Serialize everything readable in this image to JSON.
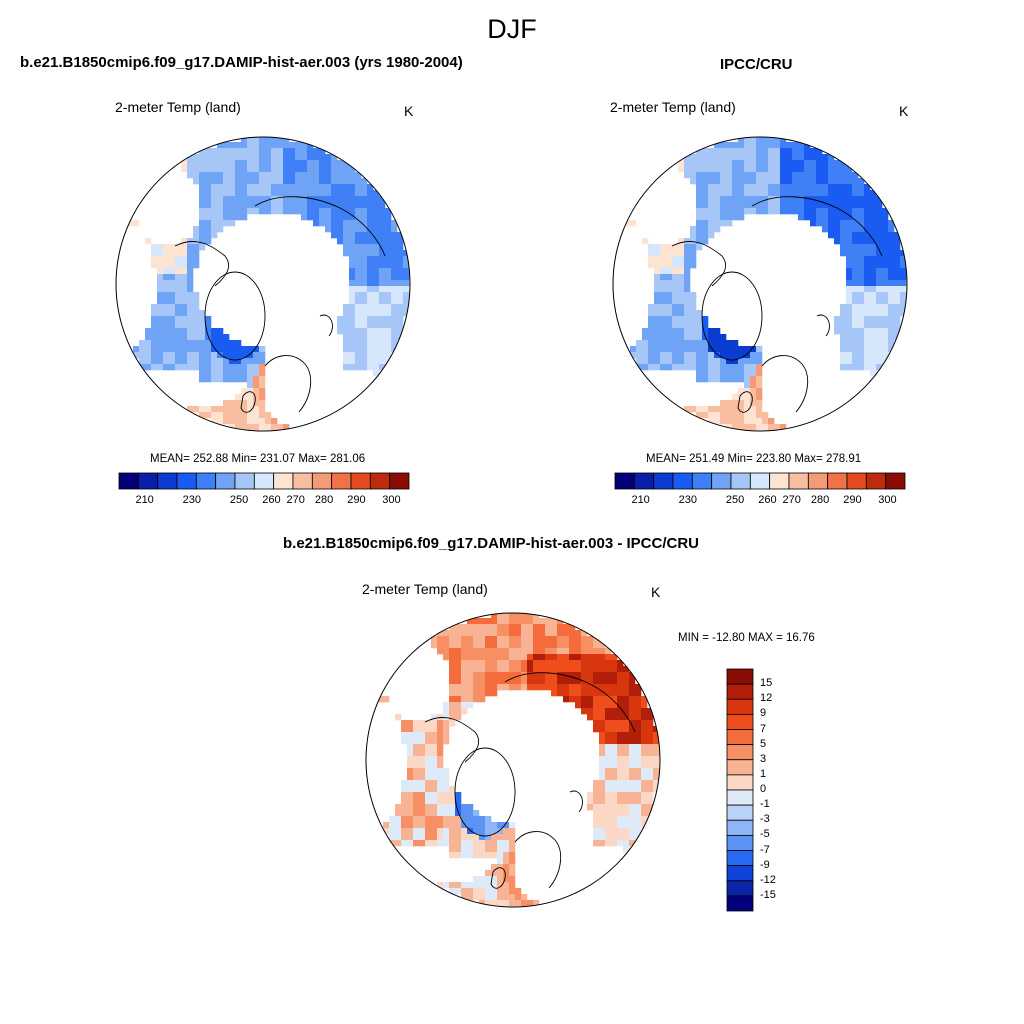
{
  "figure": {
    "season_title": "DJF"
  },
  "panels": [
    {
      "title": "b.e21.B1850cmip6.f09_g17.DAMIP-hist-aer.003 (yrs 1980-2004)",
      "variable": "2-meter Temp (land)",
      "units": "K",
      "stats": "MEAN= 252.88  Min= 231.07  Max= 281.06"
    },
    {
      "title": "IPCC/CRU",
      "variable": "2-meter Temp (land)",
      "units": "K",
      "stats": "MEAN= 251.49  Min= 223.80  Max= 278.91"
    },
    {
      "title": "b.e21.B1850cmip6.f09_g17.DAMIP-hist-aer.003 - IPCC/CRU",
      "variable": "2-meter Temp (land)",
      "units": "K",
      "stats": "MIN = -12.80 MAX =  16.76"
    }
  ],
  "colorbars": {
    "absolute": {
      "orientation": "horizontal",
      "tick_labels": [
        "210",
        "230",
        "250",
        "260",
        "270",
        "280",
        "290",
        "300"
      ],
      "colors": [
        "#04007a",
        "#0a1fa8",
        "#0b3cd0",
        "#1a5cf2",
        "#3f80f6",
        "#6fa3f5",
        "#a6c6f7",
        "#d6e6fb",
        "#fde3d2",
        "#f9bea0",
        "#f59a76",
        "#f07348",
        "#e44b22",
        "#c02a0d",
        "#8a0d05"
      ]
    },
    "difference": {
      "orientation": "vertical",
      "tick_labels": [
        "15",
        "12",
        "9",
        "7",
        "5",
        "3",
        "1",
        "0",
        "-1",
        "-3",
        "-5",
        "-7",
        "-9",
        "-12",
        "-15"
      ],
      "colors": [
        "#8a0d05",
        "#b11f0b",
        "#d8360f",
        "#f04d1c",
        "#f46b3c",
        "#f68f64",
        "#f7b393",
        "#fbd8c5",
        "#dfeaf8",
        "#b8d2f8",
        "#8eb6f6",
        "#5d93f4",
        "#2a6af0",
        "#1143d9",
        "#0a25a8",
        "#03007c"
      ]
    }
  },
  "map_fields": {
    "projection": "north-polar-stereographic",
    "model_abs": {
      "range_K": [
        231.07,
        281.06
      ],
      "mean_K": 252.88,
      "pattern": "cold Siberia and Canadian Arctic, warm Europe and Pacific coast"
    },
    "obs_abs": {
      "range_K": [
        223.8,
        278.91
      ],
      "mean_K": 251.49,
      "pattern": "colder core over eastern Siberia"
    },
    "difference": {
      "range_K": [
        -12.8,
        16.76
      ],
      "pattern": "strong warm bias over Siberia, cold bias over Greenland"
    }
  }
}
